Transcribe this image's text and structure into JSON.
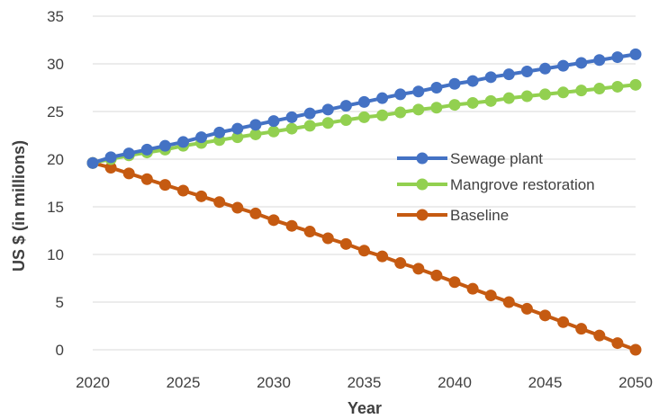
{
  "chart_data": {
    "type": "line",
    "title": "",
    "xlabel": "Year",
    "ylabel": "US $ (in millions)",
    "xlim": [
      2020,
      2050
    ],
    "ylim": [
      0,
      35
    ],
    "x_ticks": [
      2020,
      2025,
      2030,
      2035,
      2040,
      2045,
      2050
    ],
    "y_ticks": [
      0,
      5,
      10,
      15,
      20,
      25,
      30,
      35
    ],
    "grid": "horizontal",
    "legend_position": "right",
    "x": [
      2020,
      2021,
      2022,
      2023,
      2024,
      2025,
      2026,
      2027,
      2028,
      2029,
      2030,
      2031,
      2032,
      2033,
      2034,
      2035,
      2036,
      2037,
      2038,
      2039,
      2040,
      2041,
      2042,
      2043,
      2044,
      2045,
      2046,
      2047,
      2048,
      2049,
      2050
    ],
    "series": [
      {
        "name": "Sewage plant",
        "color": "#4472c4",
        "values": [
          19.6,
          20.2,
          20.6,
          21.0,
          21.4,
          21.8,
          22.3,
          22.8,
          23.2,
          23.6,
          24.0,
          24.4,
          24.8,
          25.2,
          25.6,
          26.0,
          26.4,
          26.8,
          27.1,
          27.5,
          27.9,
          28.2,
          28.6,
          28.9,
          29.2,
          29.5,
          29.8,
          30.1,
          30.4,
          30.7,
          31.0
        ]
      },
      {
        "name": "Mangrove restoration",
        "color": "#92d050",
        "values": [
          19.6,
          20.0,
          20.4,
          20.7,
          21.0,
          21.4,
          21.7,
          22.0,
          22.3,
          22.6,
          22.9,
          23.2,
          23.5,
          23.8,
          24.1,
          24.4,
          24.6,
          24.9,
          25.2,
          25.4,
          25.7,
          25.9,
          26.1,
          26.4,
          26.6,
          26.8,
          27.0,
          27.2,
          27.4,
          27.6,
          27.8
        ]
      },
      {
        "name": "Baseline",
        "color": "#c55a11",
        "values": [
          19.6,
          19.1,
          18.5,
          17.9,
          17.3,
          16.7,
          16.1,
          15.5,
          14.9,
          14.3,
          13.6,
          13.0,
          12.4,
          11.7,
          11.1,
          10.4,
          9.8,
          9.1,
          8.5,
          7.8,
          7.1,
          6.4,
          5.7,
          5.0,
          4.3,
          3.6,
          2.9,
          2.2,
          1.5,
          0.7,
          0.0
        ]
      }
    ]
  }
}
